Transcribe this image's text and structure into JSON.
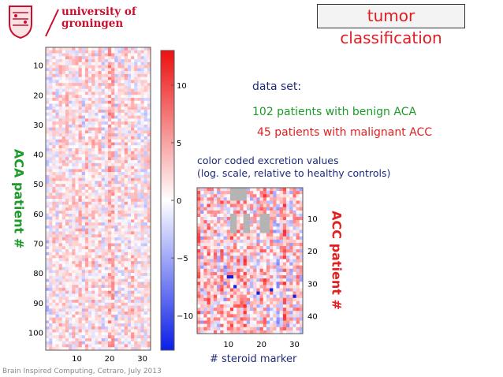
{
  "header": {
    "university_line1": "university of",
    "university_line2": "groningen",
    "title": "tumor classification"
  },
  "dataset": {
    "heading": "data set:",
    "benign": "102 patients with benign ACA",
    "malignant": "45  patients with malignant ACC"
  },
  "color_note": {
    "line1": "color coded excretion values",
    "line2": "(log. scale, relative to healthy controls)"
  },
  "colors": {
    "benign_green": "#1e9a2a",
    "malignant_red": "#e02020",
    "text_blue": "#1f2a7a",
    "brand_red": "#c8102e"
  },
  "chart_data": [
    {
      "type": "heatmap",
      "ylabel": "ACA  patient #",
      "x_ticks": [
        "10",
        "20",
        "30"
      ],
      "y_ticks": [
        "10",
        "20",
        "30",
        "40",
        "50",
        "60",
        "70",
        "80",
        "90",
        "100"
      ],
      "rows": 102,
      "cols": 32
    },
    {
      "type": "colorbar",
      "range": [
        -13,
        13
      ],
      "ticks": [
        "10",
        "5",
        "0",
        "−5",
        "−10"
      ],
      "colormap": "blue-white-red"
    },
    {
      "type": "heatmap",
      "xlabel": "# steroid marker",
      "ylabel": "ACC  patient #",
      "x_ticks": [
        "10",
        "20",
        "30"
      ],
      "y_ticks": [
        "10",
        "20",
        "30",
        "40"
      ],
      "rows": 45,
      "cols": 32
    }
  ],
  "footer": "Brain Inspired Computing, Cetraro, July 2013"
}
